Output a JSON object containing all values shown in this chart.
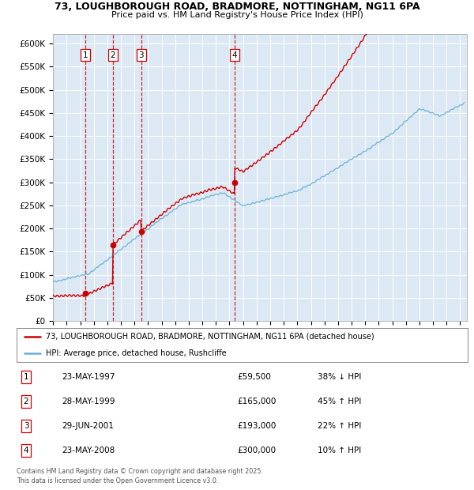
{
  "title_line1": "73, LOUGHBOROUGH ROAD, BRADMORE, NOTTINGHAM, NG11 6PA",
  "title_line2": "Price paid vs. HM Land Registry's House Price Index (HPI)",
  "background_color": "#ffffff",
  "plot_bg_color": "#dce9f5",
  "grid_color": "#ffffff",
  "transactions": [
    {
      "num": 1,
      "date_label": "23-MAY-1997",
      "price": 59500,
      "year": 1997.39,
      "pct": "38%",
      "dir": "↓"
    },
    {
      "num": 2,
      "date_label": "28-MAY-1999",
      "price": 165000,
      "year": 1999.4,
      "pct": "45%",
      "dir": "↑"
    },
    {
      "num": 3,
      "date_label": "29-JUN-2001",
      "price": 193000,
      "year": 2001.49,
      "pct": "22%",
      "dir": "↑"
    },
    {
      "num": 4,
      "date_label": "23-MAY-2008",
      "price": 300000,
      "year": 2008.39,
      "pct": "10%",
      "dir": "↑"
    }
  ],
  "legend_line1": "73, LOUGHBOROUGH ROAD, BRADMORE, NOTTINGHAM, NG11 6PA (detached house)",
  "legend_line2": "HPI: Average price, detached house, Rushcliffe",
  "footer_line1": "Contains HM Land Registry data © Crown copyright and database right 2025.",
  "footer_line2": "This data is licensed under the Open Government Licence v3.0.",
  "price_line_color": "#cc0000",
  "hpi_line_color": "#6ab0d4",
  "vline_color": "#cc0000",
  "ylim": [
    0,
    620000
  ],
  "yticks": [
    0,
    50000,
    100000,
    150000,
    200000,
    250000,
    300000,
    350000,
    400000,
    450000,
    500000,
    550000,
    600000
  ],
  "xlim_start": 1995.0,
  "xlim_end": 2025.5
}
